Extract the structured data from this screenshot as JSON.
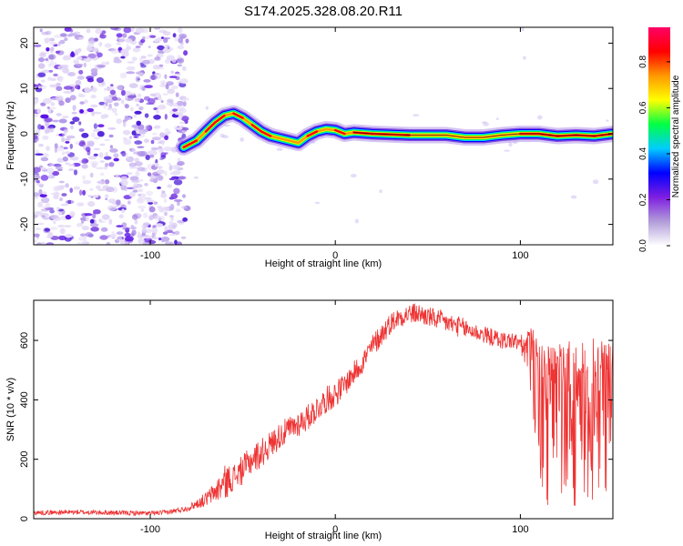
{
  "title": "S174.2025.328.08.20.R11",
  "colors": {
    "snr_line": "#ee3333",
    "background": "#ffffff",
    "axis": "#000000",
    "ridge": "#000000"
  },
  "chart_data": [
    {
      "type": "heatmap",
      "name": "spectrogram",
      "xlabel": "Height of straight line (km)",
      "ylabel": "Frequency (Hz)",
      "xlim": [
        -163,
        150
      ],
      "ylim": [
        -24.5,
        23.5
      ],
      "xticks": [
        -100,
        0,
        100
      ],
      "yticks": [
        -20,
        -10,
        0,
        10,
        20
      ],
      "noise_region_x": [
        -163,
        -80
      ],
      "ridge": [
        {
          "x": -82,
          "y": -3
        },
        {
          "x": -75,
          "y": -1.5
        },
        {
          "x": -70,
          "y": 0.5
        },
        {
          "x": -65,
          "y": 2.5
        },
        {
          "x": -60,
          "y": 4
        },
        {
          "x": -55,
          "y": 4.5
        },
        {
          "x": -50,
          "y": 3.5
        },
        {
          "x": -45,
          "y": 2
        },
        {
          "x": -40,
          "y": 0.5
        },
        {
          "x": -35,
          "y": -0.5
        },
        {
          "x": -30,
          "y": -1
        },
        {
          "x": -25,
          "y": -1.5
        },
        {
          "x": -20,
          "y": -2
        },
        {
          "x": -15,
          "y": -0.5
        },
        {
          "x": -10,
          "y": 0.5
        },
        {
          "x": -5,
          "y": 1
        },
        {
          "x": 0,
          "y": 0.8
        },
        {
          "x": 5,
          "y": 0
        },
        {
          "x": 10,
          "y": 0.3
        },
        {
          "x": 20,
          "y": 0
        },
        {
          "x": 40,
          "y": -0.3
        },
        {
          "x": 60,
          "y": -0.3
        },
        {
          "x": 70,
          "y": -0.8
        },
        {
          "x": 80,
          "y": -0.8
        },
        {
          "x": 90,
          "y": -0.3
        },
        {
          "x": 100,
          "y": 0
        },
        {
          "x": 110,
          "y": 0
        },
        {
          "x": 120,
          "y": -0.5
        },
        {
          "x": 130,
          "y": -0.3
        },
        {
          "x": 140,
          "y": -0.5
        },
        {
          "x": 150,
          "y": 0
        }
      ],
      "colorbar": {
        "label": "Normalized spectral amplitude",
        "range": [
          0,
          0.95
        ],
        "ticks": [
          0,
          0.2,
          0.4,
          0.6,
          0.8
        ],
        "tick_labels": [
          "0.0",
          "0.2",
          "0.4",
          "0.6",
          "0.8"
        ],
        "colors": [
          "#ffffff",
          "#b19cd9",
          "#7e1fe0",
          "#0000ff",
          "#00ccff",
          "#00ff44",
          "#ffff00",
          "#ff9900",
          "#ff0000",
          "#ff0066"
        ]
      }
    },
    {
      "type": "line",
      "name": "snr",
      "xlabel": "Height of straight line (km)",
      "ylabel": "SNR (10 * v/v)",
      "xlim": [
        -163,
        150
      ],
      "ylim": [
        0,
        735
      ],
      "xticks": [
        -100,
        0,
        100
      ],
      "yticks": [
        0,
        200,
        400,
        600
      ],
      "series": [
        {
          "name": "SNR",
          "x": [
            -163,
            -140,
            -120,
            -100,
            -90,
            -80,
            -75,
            -70,
            -65,
            -60,
            -55,
            -50,
            -45,
            -40,
            -35,
            -30,
            -25,
            -20,
            -15,
            -10,
            -5,
            0,
            5,
            10,
            15,
            20,
            25,
            30,
            35,
            40,
            45,
            50,
            55,
            60,
            65,
            70,
            75,
            80,
            85,
            90,
            95,
            100,
            103,
            106,
            110,
            115,
            120,
            125,
            130,
            135,
            140,
            145,
            150
          ],
          "y": [
            20,
            22,
            20,
            18,
            22,
            35,
            50,
            65,
            90,
            120,
            140,
            165,
            200,
            220,
            250,
            280,
            300,
            320,
            340,
            370,
            400,
            420,
            450,
            490,
            530,
            580,
            620,
            660,
            680,
            690,
            690,
            680,
            670,
            660,
            650,
            640,
            630,
            620,
            610,
            600,
            600,
            590,
            560,
            500,
            350,
            300,
            320,
            340,
            300,
            320,
            330,
            320,
            340
          ],
          "noise": [
            8,
            8,
            8,
            8,
            8,
            10,
            15,
            25,
            35,
            60,
            45,
            50,
            50,
            50,
            45,
            45,
            45,
            45,
            45,
            45,
            45,
            45,
            40,
            40,
            40,
            40,
            40,
            35,
            35,
            35,
            35,
            35,
            35,
            35,
            35,
            35,
            30,
            30,
            30,
            30,
            30,
            30,
            60,
            150,
            250,
            280,
            280,
            280,
            280,
            280,
            280,
            280,
            280
          ]
        }
      ]
    }
  ]
}
